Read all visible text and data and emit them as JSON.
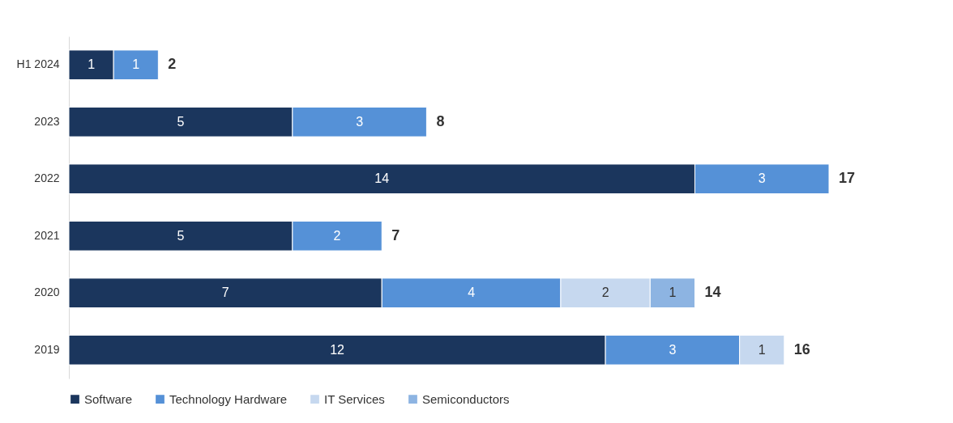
{
  "chart_data": {
    "type": "bar",
    "orientation": "horizontal",
    "stacked": true,
    "data_labels": true,
    "legend": "bottom",
    "grid": false,
    "categories": [
      "H1 2024",
      "2023",
      "2022",
      "2021",
      "2020",
      "2019"
    ],
    "series": [
      {
        "name": "Software",
        "color": "#1b365d",
        "values": [
          1,
          5,
          14,
          5,
          7,
          12
        ]
      },
      {
        "name": "Technology Hardware",
        "color": "#5591d7",
        "values": [
          1,
          3,
          3,
          2,
          4,
          3
        ]
      },
      {
        "name": "IT Services",
        "color": "#c6d8ef",
        "values": [
          null,
          null,
          null,
          null,
          2,
          1
        ]
      },
      {
        "name": "Semiconductors",
        "color": "#8db4e2",
        "values": [
          null,
          null,
          null,
          null,
          1,
          null
        ]
      }
    ],
    "totals": [
      "2",
      "8",
      "17",
      "7",
      "14",
      "16"
    ]
  }
}
